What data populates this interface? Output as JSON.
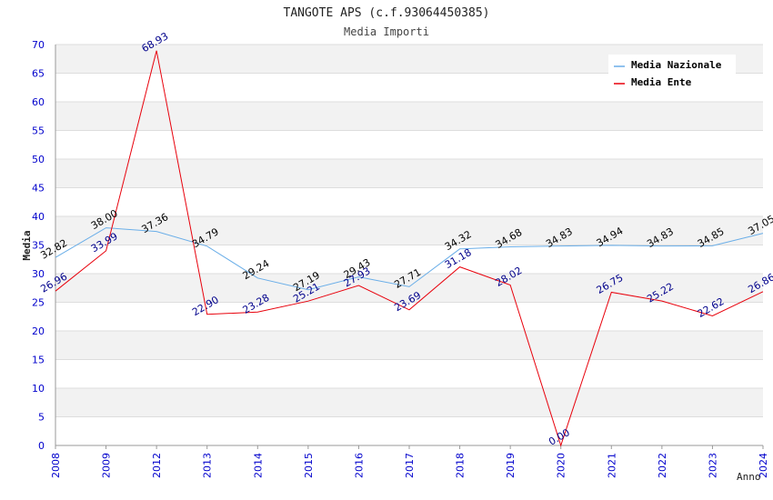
{
  "chart_data": {
    "type": "line",
    "title": "TANGOTE APS (c.f.93064450385)",
    "subtitle": "Media Importi",
    "xlabel": "Anno",
    "ylabel": "Media",
    "ylim": [
      0,
      70
    ],
    "yticks": [
      "0",
      "5",
      "10",
      "15",
      "20",
      "25",
      "30",
      "35",
      "40",
      "45",
      "50",
      "55",
      "60",
      "65",
      "70"
    ],
    "categories": [
      "2008",
      "2009",
      "2012",
      "2013",
      "2014",
      "2015",
      "2016",
      "2017",
      "2018",
      "2019",
      "2020",
      "2021",
      "2022",
      "2023",
      "2024"
    ],
    "legend_position": "top-right",
    "series": [
      {
        "name": "Media Nazionale",
        "color": "#6aaee8",
        "label_color": "#000000",
        "values": [
          32.82,
          38.0,
          37.36,
          34.79,
          29.24,
          27.19,
          29.43,
          27.71,
          34.32,
          34.68,
          34.83,
          34.94,
          34.83,
          34.85,
          37.05
        ],
        "labels": [
          "32.82",
          "38.00",
          "37.36",
          "34.79",
          "29.24",
          "27.19",
          "29.43",
          "27.71",
          "34.32",
          "34.68",
          "34.83",
          "34.94",
          "34.83",
          "34.85",
          "37.05"
        ]
      },
      {
        "name": "Media Ente",
        "color": "#e8000b",
        "label_color": "#00008b",
        "values": [
          26.96,
          33.99,
          68.93,
          22.9,
          23.28,
          25.21,
          27.93,
          23.69,
          31.18,
          28.02,
          0.0,
          26.75,
          25.22,
          22.62,
          26.86
        ],
        "labels": [
          "26.96",
          "33.99",
          "68.93",
          "22.90",
          "23.28",
          "25.21",
          "27.93",
          "23.69",
          "31.18",
          "28.02",
          "0.00",
          "26.75",
          "25.22",
          "22.62",
          "26.86"
        ]
      }
    ]
  },
  "colors": {
    "band": "#f2f2f2",
    "grid": "#dddddd",
    "axis": "#999999",
    "tick_text": "#0000cc",
    "title_text": "#222222",
    "subtitle_text": "#444444"
  }
}
